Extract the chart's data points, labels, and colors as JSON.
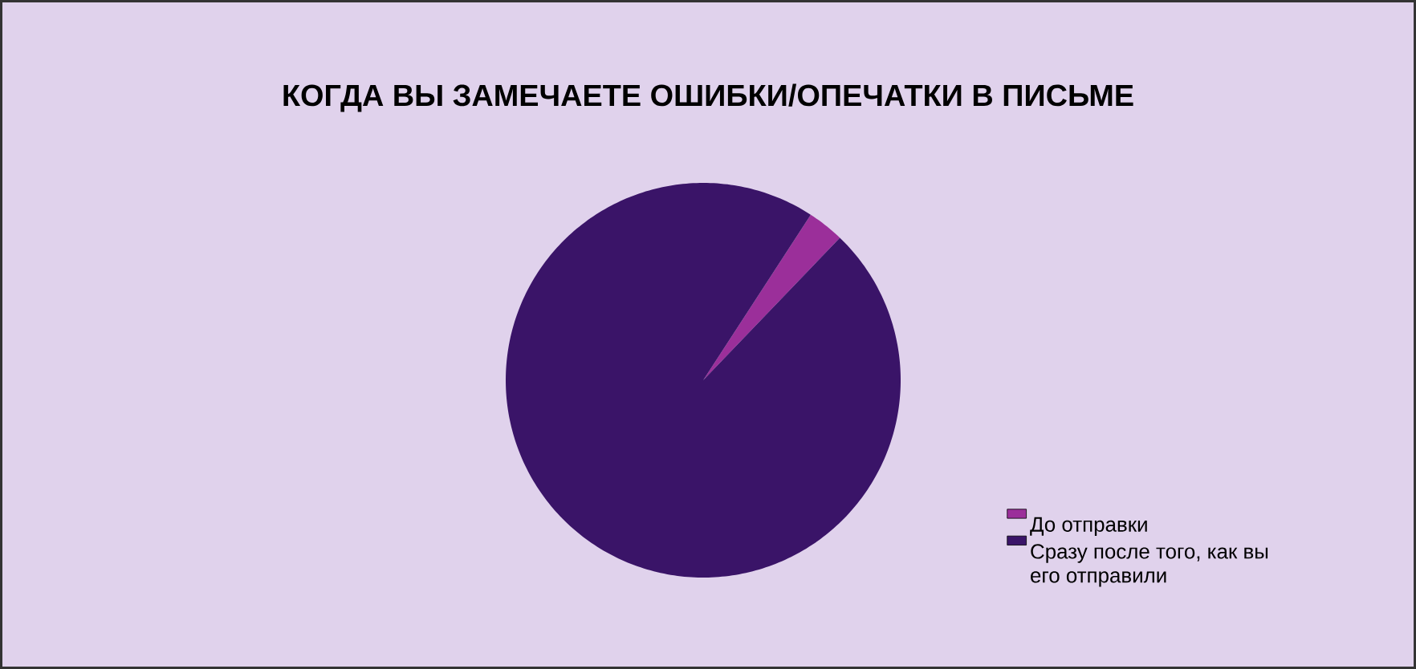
{
  "chart_data": {
    "type": "pie",
    "title": "КОГДА ВЫ ЗАМЕЧАЕТЕ ОШИБКИ/ОПЕЧАТКИ В ПИСЬМЕ",
    "categories": [
      "До отправки",
      "Сразу после того, как вы его отправили"
    ],
    "values": [
      3,
      97
    ],
    "colors": [
      "#9b2f9a",
      "#3a1468"
    ],
    "legend": "bottom right"
  }
}
